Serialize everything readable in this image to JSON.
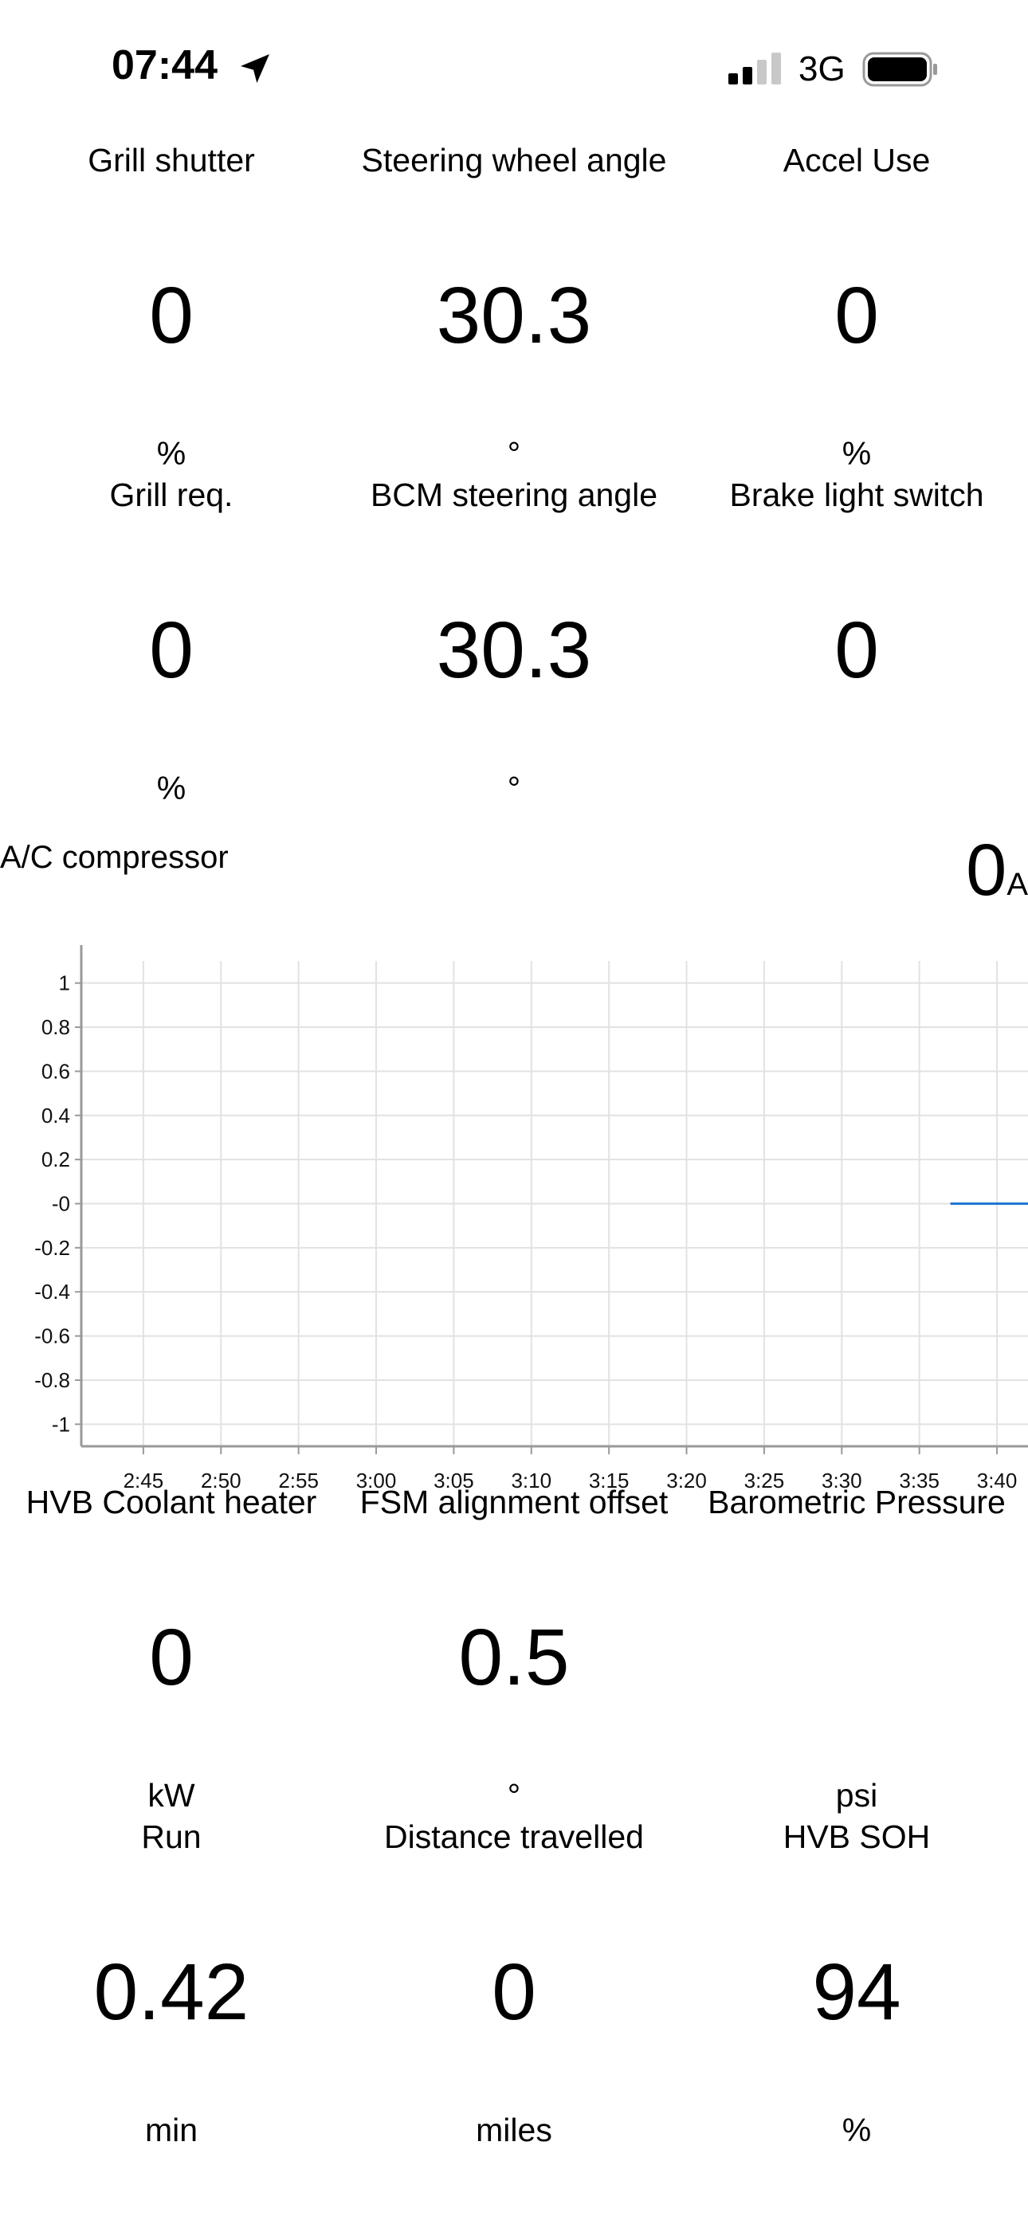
{
  "status_bar": {
    "time": "07:44",
    "network": "3G",
    "icons": [
      "location-arrow-icon",
      "signal-bars-icon",
      "battery-icon"
    ]
  },
  "tiles_row1": [
    {
      "title": "Grill shutter",
      "value": "0",
      "unit": "%"
    },
    {
      "title": "Steering wheel angle",
      "value": "30.3",
      "unit": "°"
    },
    {
      "title": "Accel Use",
      "value": "0",
      "unit": "%"
    }
  ],
  "tiles_row2": [
    {
      "title": "Grill req.",
      "value": "0",
      "unit": "%"
    },
    {
      "title": "BCM steering angle",
      "value": "30.3",
      "unit": "°"
    },
    {
      "title": "Brake light switch",
      "value": "0",
      "unit": ""
    }
  ],
  "ac_compressor": {
    "title": "A/C compressor",
    "value": "0",
    "unit": "A"
  },
  "chart_data": {
    "type": "line",
    "title": "",
    "xlabel": "",
    "ylabel": "",
    "y_ticks": [
      "1",
      "0.8",
      "0.6",
      "0.4",
      "0.2",
      "-0",
      "-0.2",
      "-0.4",
      "-0.6",
      "-0.8",
      "-1"
    ],
    "x_ticks": [
      "2:45",
      "2:50",
      "2:55",
      "3:00",
      "3:05",
      "3:10",
      "3:15",
      "3:20",
      "3:25",
      "3:30",
      "3:35",
      "3:40"
    ],
    "ylim": [
      -1.1,
      1.1
    ],
    "xlim": [
      "2:41",
      "3:42"
    ],
    "grid": true,
    "series": [
      {
        "x": [
          "3:37",
          "3:42"
        ],
        "y": [
          0,
          0
        ],
        "color": "#1f77d4"
      }
    ]
  },
  "tiles_row3": [
    {
      "title": "HVB Coolant heater",
      "value": "0",
      "unit": "kW"
    },
    {
      "title": "FSM alignment offset",
      "value": "0.5",
      "unit": "°"
    },
    {
      "title": "Barometric Pressure",
      "value": "",
      "unit": "psi"
    }
  ],
  "tiles_row4": [
    {
      "title": "Run",
      "value": "0.42",
      "unit": "min"
    },
    {
      "title": "Distance travelled",
      "value": "0",
      "unit": "miles"
    },
    {
      "title": "HVB SOH",
      "value": "94",
      "unit": "%"
    }
  ]
}
